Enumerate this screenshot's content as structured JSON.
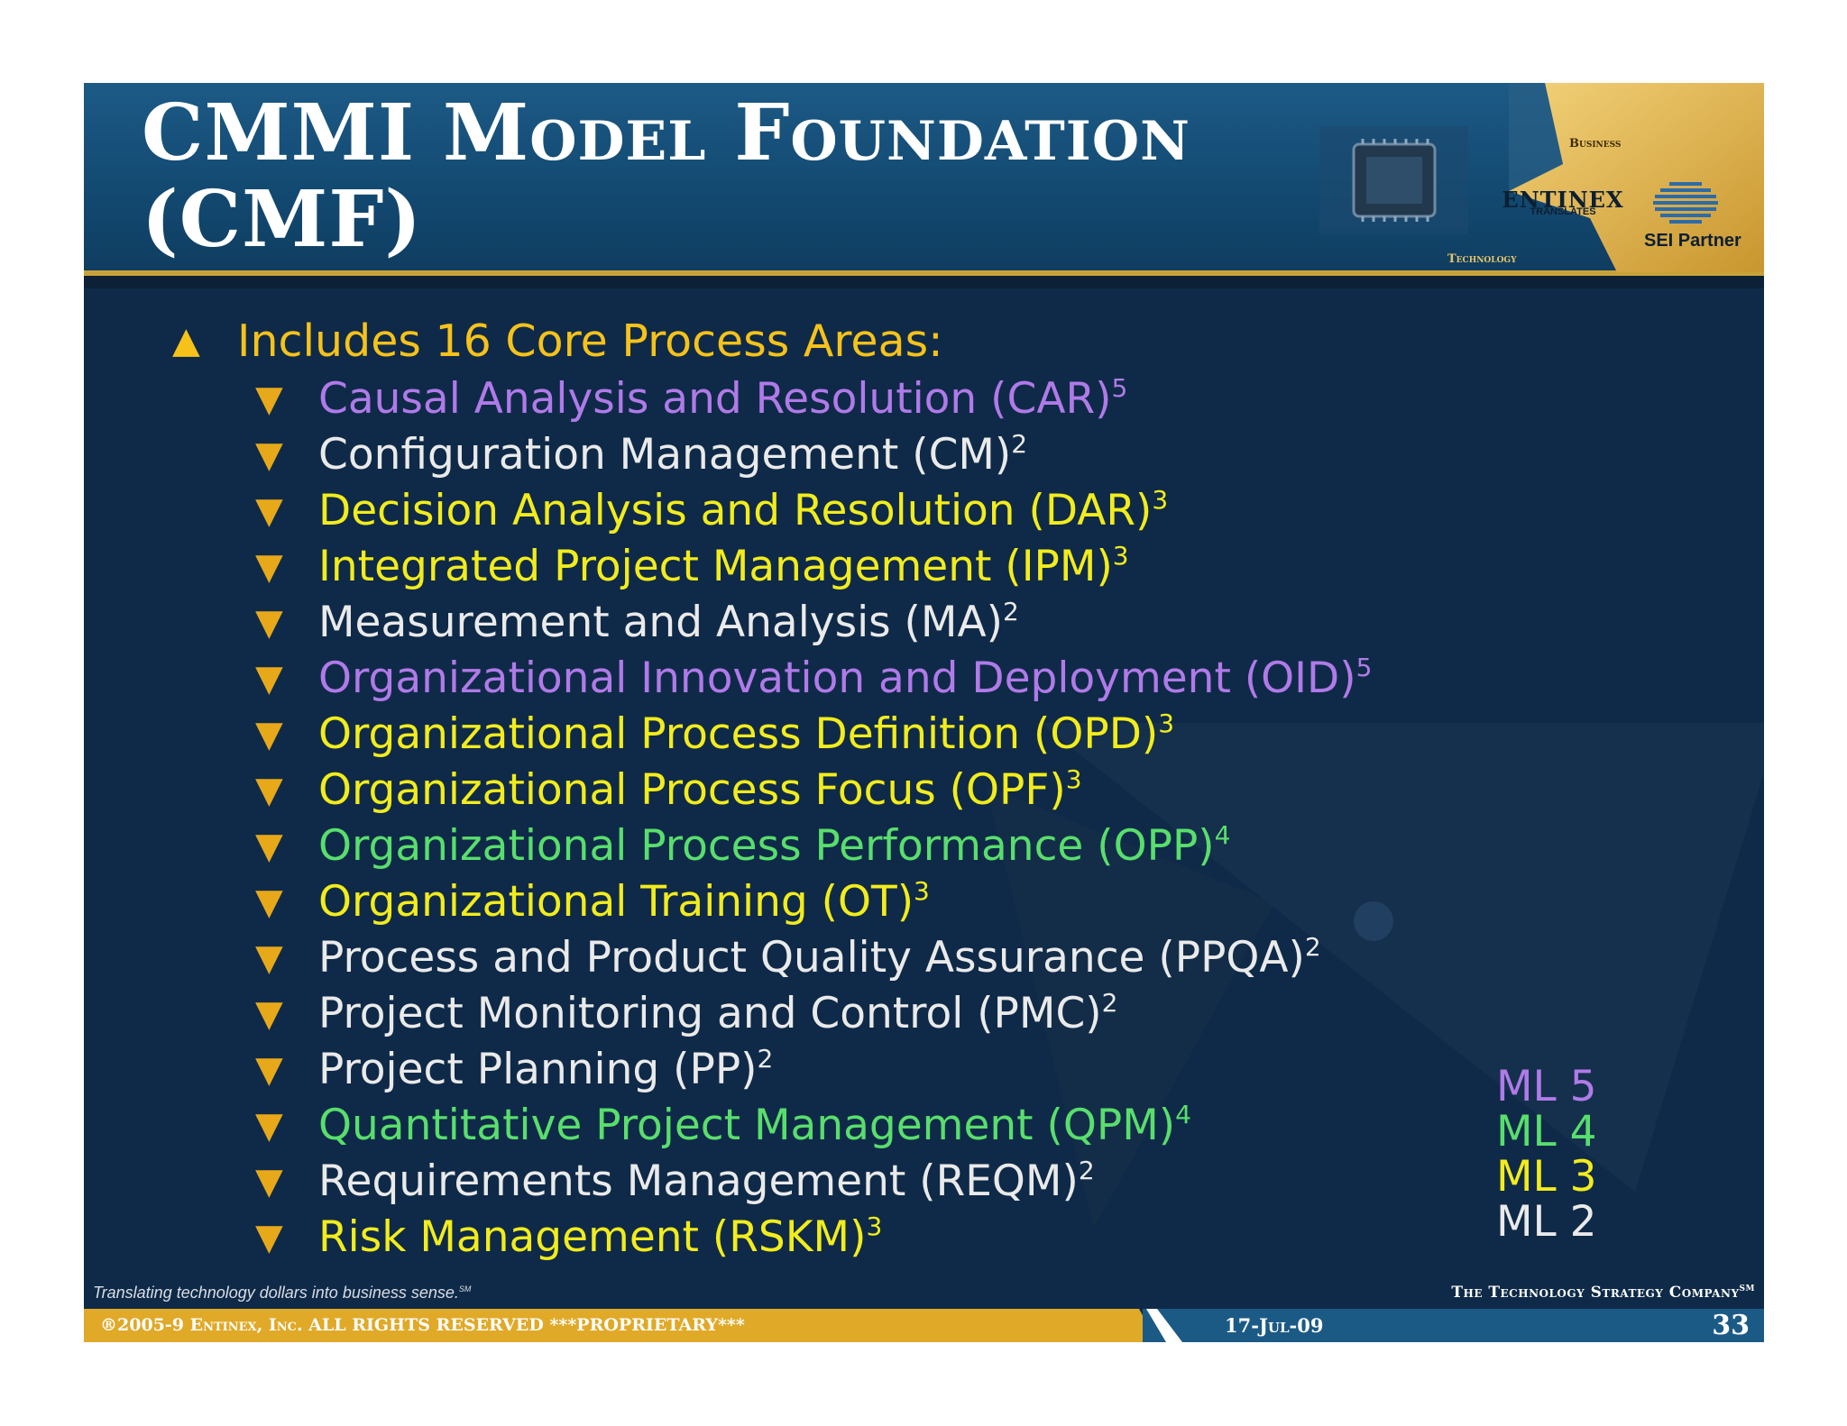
{
  "header": {
    "title_line1": "CMMI Model Foundation",
    "title_line2": "(CMF)",
    "logo": {
      "business": "Business",
      "entinex": "ENTINEX",
      "translates": "TRANSLATES",
      "technology": "Technology",
      "sei_partner": "SEI Partner"
    }
  },
  "main_bullet": "Includes 16 Core Process Areas:",
  "process_areas": [
    {
      "name": "Causal Analysis and Resolution (CAR)",
      "level": "5",
      "color": "#b07ae8"
    },
    {
      "name": "Configuration Management (CM)",
      "level": "2",
      "color": "#eaeaea"
    },
    {
      "name": "Decision Analysis and Resolution (DAR)",
      "level": "3",
      "color": "#f2ec1c"
    },
    {
      "name": "Integrated Project Management (IPM)",
      "level": "3",
      "color": "#f2ec1c"
    },
    {
      "name": "Measurement and Analysis (MA)",
      "level": "2",
      "color": "#eaeaea"
    },
    {
      "name": "Organizational Innovation and Deployment (OID)",
      "level": "5",
      "color": "#b07ae8"
    },
    {
      "name": "Organizational Process Definition (OPD)",
      "level": "3",
      "color": "#f2ec1c"
    },
    {
      "name": "Organizational Process Focus (OPF)",
      "level": "3",
      "color": "#f2ec1c"
    },
    {
      "name": "Organizational Process Performance (OPP)",
      "level": "4",
      "color": "#59de6c"
    },
    {
      "name": "Organizational Training (OT)",
      "level": "3",
      "color": "#f2ec1c"
    },
    {
      "name": "Process and Product Quality Assurance (PPQA)",
      "level": "2",
      "color": "#eaeaea"
    },
    {
      "name": "Project Monitoring and Control (PMC)",
      "level": "2",
      "color": "#eaeaea"
    },
    {
      "name": "Project Planning (PP)",
      "level": "2",
      "color": "#eaeaea"
    },
    {
      "name": "Quantitative Project Management (QPM)",
      "level": "4",
      "color": "#59de6c"
    },
    {
      "name": "Requirements Management (REQM)",
      "level": "2",
      "color": "#eaeaea"
    },
    {
      "name": "Risk Management (RSKM)",
      "level": "3",
      "color": "#f2ec1c"
    }
  ],
  "legend": {
    "ml5": "ML 5",
    "ml4": "ML 4",
    "ml3": "ML 3",
    "ml2": "ML 2"
  },
  "colors": {
    "ml5": "#b07ae8",
    "ml4": "#59de6c",
    "ml3": "#f2ec1c",
    "ml2": "#eaeaea",
    "bullet_gold": "#e7a919",
    "background": "#0f2a48"
  },
  "footer": {
    "tagline": "Translating technology dollars into business sense.",
    "tagline_mark": "SM",
    "company": "The Technology Strategy Company",
    "company_mark": "SM",
    "copyright": "®2005-9 Entinex, Inc. ALL RIGHTS RESERVED  ***PROPRIETARY***",
    "date": "17-Jul-09",
    "page_number": "33"
  }
}
